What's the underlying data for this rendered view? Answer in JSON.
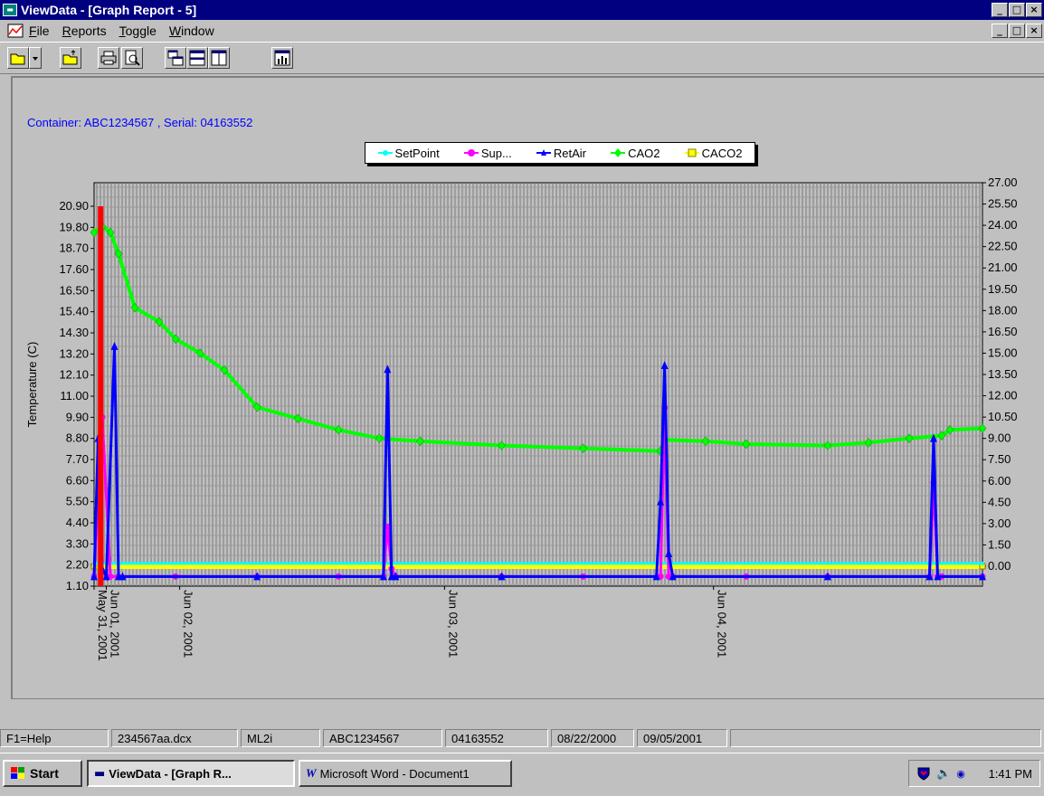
{
  "window": {
    "title": "ViewData - [Graph Report - 5]"
  },
  "window_buttons": {
    "minimize": "_",
    "maximize": "□",
    "close": "×"
  },
  "menu": {
    "items": [
      {
        "underline": "F",
        "rest": "ile"
      },
      {
        "underline": "R",
        "rest": "eports"
      },
      {
        "underline": "T",
        "rest": "oggle"
      },
      {
        "underline": "W",
        "rest": "indow"
      }
    ]
  },
  "toolbar": {
    "buttons": [
      "folder-open-icon",
      "dropdown-arrow-icon",
      "folder-up-icon",
      "printer-icon",
      "print-preview-icon",
      "tile-icon",
      "rows-icon",
      "columns-icon",
      "chart-icon"
    ]
  },
  "report": {
    "container_label": "Container: ABC1234567 , Serial: 04163552"
  },
  "chart_data": {
    "type": "line",
    "ylabel": "Temperature (C)",
    "y_left_ticks": [
      1.1,
      2.2,
      3.3,
      4.4,
      5.5,
      6.6,
      7.7,
      8.8,
      9.9,
      11.0,
      12.1,
      13.2,
      14.3,
      15.4,
      16.5,
      17.6,
      18.7,
      19.8,
      20.9
    ],
    "y_left_tick_labels": [
      "1.10",
      "2.20",
      "3.30",
      "4.40",
      "5.50",
      "6.60",
      "7.70",
      "8.80",
      "9.90",
      "11.00",
      "12.10",
      "13.20",
      "14.30",
      "15.40",
      "16.50",
      "17.60",
      "18.70",
      "19.80",
      "20.90"
    ],
    "y_right_ticks": [
      0.0,
      1.5,
      3.0,
      4.5,
      6.0,
      7.5,
      9.0,
      10.5,
      12.0,
      13.5,
      15.0,
      16.5,
      18.0,
      19.5,
      21.0,
      22.5,
      24.0,
      25.5,
      27.0
    ],
    "y_right_tick_labels": [
      "0.00",
      "1.50",
      "3.00",
      "4.50",
      "6.00",
      "7.50",
      "9.00",
      "10.50",
      "12.00",
      "13.50",
      "15.00",
      "16.50",
      "18.00",
      "19.50",
      "21.00",
      "22.50",
      "24.00",
      "25.50",
      "27.00"
    ],
    "y_left_range": [
      1.1,
      20.9
    ],
    "y_right_range": [
      0.0,
      27.0
    ],
    "x_tick_labels": [
      {
        "label": "May 31, 2001",
        "day": 0.0
      },
      {
        "label": "Jun 01, 2001",
        "day": 0.15
      },
      {
        "label": "Jun 02, 2001",
        "day": 1.05
      },
      {
        "label": "Jun 03, 2001",
        "day": 4.3
      },
      {
        "label": "Jun 04, 2001",
        "day": 7.6
      }
    ],
    "x_range_days": [
      0,
      10.9
    ],
    "grid": true,
    "legend_position": "top",
    "series": [
      {
        "name": "SetPoint",
        "color": "#00ffff",
        "axis": "right",
        "x": [
          0.0,
          10.9
        ],
        "y": [
          0.2,
          0.2
        ]
      },
      {
        "name": "Sup...",
        "color": "#ff00ff",
        "axis": "left",
        "x": [
          0.0,
          0.1,
          0.2,
          0.3,
          1.0,
          2.0,
          3.0,
          3.55,
          3.6,
          3.65,
          3.7,
          5.0,
          6.0,
          6.95,
          7.0,
          7.05,
          7.1,
          8.0,
          9.0,
          10.25,
          10.3,
          10.35,
          10.4,
          10.9
        ],
        "y": [
          1.6,
          9.9,
          1.6,
          1.6,
          1.6,
          1.6,
          1.6,
          1.6,
          4.2,
          2.0,
          1.6,
          1.6,
          1.6,
          1.6,
          10.4,
          1.6,
          1.6,
          1.6,
          1.6,
          1.6,
          6.5,
          1.6,
          1.6,
          1.6
        ]
      },
      {
        "name": "RetAir",
        "color": "#0000ff",
        "axis": "left",
        "x": [
          0.0,
          0.05,
          0.1,
          0.15,
          0.25,
          0.3,
          0.35,
          2.0,
          3.55,
          3.6,
          3.65,
          3.7,
          5.0,
          6.9,
          6.95,
          7.0,
          7.05,
          7.1,
          9.0,
          10.25,
          10.3,
          10.35,
          10.9
        ],
        "y": [
          1.6,
          8.8,
          2.0,
          1.6,
          13.6,
          1.6,
          1.6,
          1.6,
          1.6,
          12.4,
          1.6,
          1.6,
          1.6,
          1.6,
          5.5,
          12.6,
          2.8,
          1.6,
          1.6,
          1.6,
          8.8,
          1.6,
          1.6
        ]
      },
      {
        "name": "CAO2",
        "color": "#00ff00",
        "axis": "right",
        "x": [
          0.0,
          0.1,
          0.2,
          0.3,
          0.5,
          0.8,
          1.0,
          1.3,
          1.6,
          2.0,
          2.5,
          3.0,
          3.5,
          4.0,
          5.0,
          6.0,
          6.95,
          7.0,
          7.5,
          8.0,
          9.0,
          9.5,
          10.0,
          10.4,
          10.5,
          10.9
        ],
        "y": [
          23.5,
          23.9,
          23.5,
          22.0,
          18.2,
          17.2,
          16.0,
          15.0,
          13.8,
          11.2,
          10.4,
          9.6,
          9.0,
          8.8,
          8.5,
          8.3,
          8.1,
          8.9,
          8.8,
          8.6,
          8.5,
          8.7,
          9.0,
          9.2,
          9.6,
          9.7
        ]
      },
      {
        "name": "CACO2",
        "color": "#ffff00",
        "axis": "right",
        "x": [
          0.0,
          10.9
        ],
        "y": [
          0.0,
          0.0
        ]
      }
    ],
    "markers": [
      {
        "x": 0.08,
        "color": "#ff0000"
      }
    ]
  },
  "statusbar": {
    "cells": [
      {
        "text": "F1=Help",
        "width": 120
      },
      {
        "text": "234567aa.dcx",
        "width": 140
      },
      {
        "text": "ML2i",
        "width": 88
      },
      {
        "text": "ABC1234567",
        "width": 132
      },
      {
        "text": "04163552",
        "width": 114
      },
      {
        "text": "08/22/2000",
        "width": 92
      },
      {
        "text": "09/05/2001",
        "width": 100
      }
    ]
  },
  "taskbar": {
    "start_label": "Start",
    "tasks": [
      {
        "label": "ViewData - [Graph R...",
        "active": true
      },
      {
        "label": "Microsoft Word - Document1",
        "active": false
      }
    ],
    "clock": "1:41 PM"
  }
}
